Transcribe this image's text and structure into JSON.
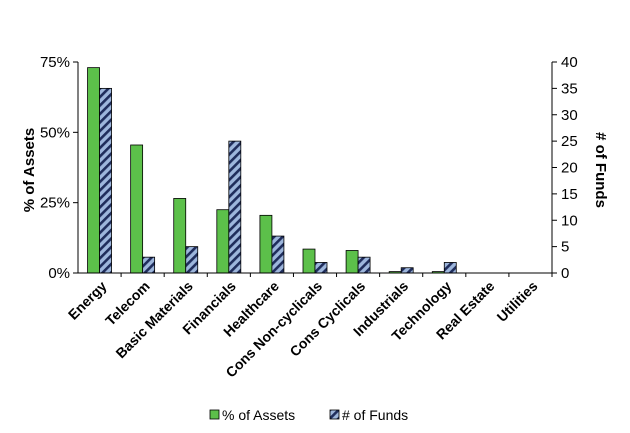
{
  "chart_data": {
    "type": "bar",
    "categories": [
      "Energy",
      "Telecom",
      "Basic Materials",
      "Financials",
      "Healthcare",
      "Cons Non-cyclicals",
      "Cons Cyclicals",
      "Industrials",
      "Technology",
      "Real Estate",
      "Utilities"
    ],
    "series": [
      {
        "name": "% of Assets",
        "axis": "left",
        "color": "#5cc04a",
        "pattern": "solid",
        "values": [
          73,
          45.5,
          26.5,
          22.5,
          20.5,
          8.5,
          8,
          0.5,
          0.5,
          0,
          0
        ]
      },
      {
        "name": "# of Funds",
        "axis": "right",
        "color": "#9db6dc",
        "pattern": "navy-diagonal-stripes",
        "values": [
          35,
          3,
          5,
          25,
          7,
          2,
          3,
          1,
          2,
          0,
          0
        ]
      }
    ],
    "y_left": {
      "label": "% of Assets",
      "range": [
        0,
        75
      ],
      "ticks": [
        0,
        25,
        50,
        75
      ],
      "tick_labels": [
        "0%",
        "25%",
        "50%",
        "75%"
      ]
    },
    "y_right": {
      "label": "# of Funds",
      "range": [
        0,
        40
      ],
      "ticks": [
        0,
        5,
        10,
        15,
        20,
        25,
        30,
        35,
        40
      ],
      "tick_labels": [
        "0",
        "5",
        "10",
        "15",
        "20",
        "25",
        "30",
        "35",
        "40"
      ]
    },
    "grid": false,
    "legend_position": "bottom"
  }
}
